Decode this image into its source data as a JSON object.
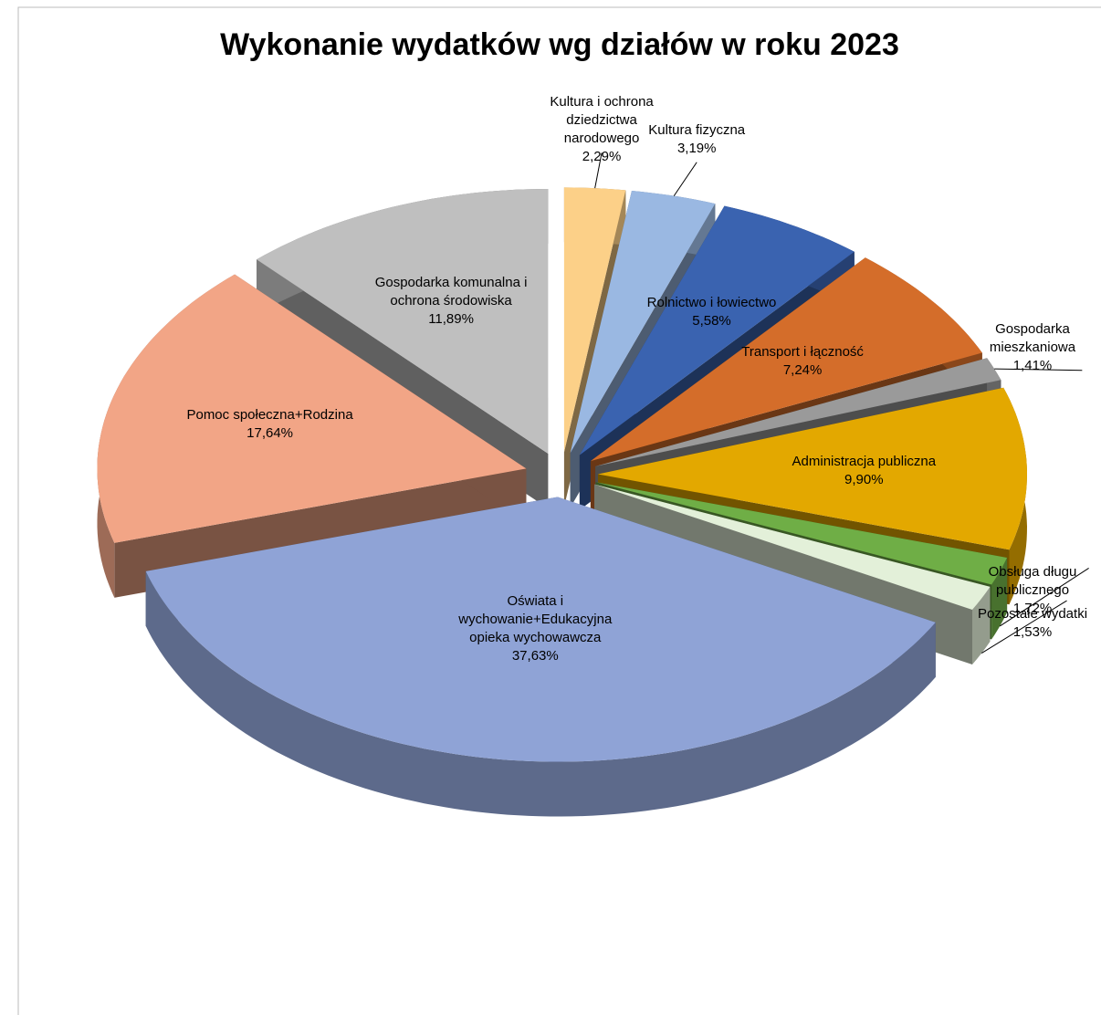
{
  "chart_data": {
    "type": "pie3d",
    "title": "Wykonanie wydatków wg działów w roku 2023",
    "categories": [
      "Kultura i ochrona dziedzictwa narodowego",
      "Kultura fizyczna",
      "Rolnictwo i łowiectwo",
      "Transport i łączność",
      "Gospodarka mieszkaniowa",
      "Administracja publiczna",
      "Obsługa długu publicznego",
      "Pozostałe wydatki",
      "Oświata i wychowanie+Edukacyjna opieka wychowawcza",
      "Pomoc społeczna+Rodzina",
      "Gospodarka komunalna i ochrona środowiska"
    ],
    "values": [
      2.29,
      3.19,
      5.58,
      7.24,
      1.41,
      9.9,
      1.72,
      1.53,
      37.63,
      17.64,
      11.89
    ],
    "value_labels": [
      "2,29%",
      "3,19%",
      "5,58%",
      "7,24%",
      "1,41%",
      "9,90%",
      "1,72%",
      "1,53%",
      "37,63%",
      "17,64%",
      "11,89%"
    ],
    "colors": [
      "#fcd088",
      "#9ab8e2",
      "#3a63b0",
      "#d46d2a",
      "#9a9a9a",
      "#e3a800",
      "#6fae46",
      "#e3f0d9",
      "#8fa3d6",
      "#f2a586",
      "#bfbfbf"
    ]
  }
}
